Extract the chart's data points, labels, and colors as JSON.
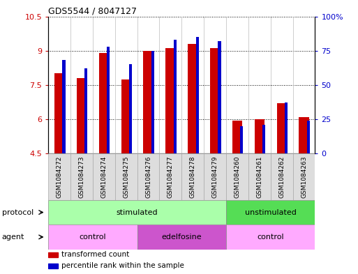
{
  "title": "GDS5544 / 8047127",
  "samples": [
    "GSM1084272",
    "GSM1084273",
    "GSM1084274",
    "GSM1084275",
    "GSM1084276",
    "GSM1084277",
    "GSM1084278",
    "GSM1084279",
    "GSM1084260",
    "GSM1084261",
    "GSM1084262",
    "GSM1084263"
  ],
  "red_values": [
    8.0,
    7.8,
    8.9,
    7.75,
    9.0,
    9.1,
    9.3,
    9.1,
    5.95,
    6.0,
    6.7,
    6.1
  ],
  "blue_values": [
    68,
    62,
    78,
    65,
    75,
    83,
    85,
    82,
    20,
    21,
    37,
    24
  ],
  "ylim_left": [
    4.5,
    10.5
  ],
  "ylim_right": [
    0,
    100
  ],
  "yticks_left": [
    4.5,
    6.0,
    7.5,
    9.0,
    10.5
  ],
  "yticks_right": [
    0,
    25,
    50,
    75,
    100
  ],
  "ytick_labels_left": [
    "4.5",
    "6",
    "7.5",
    "9",
    "10.5"
  ],
  "ytick_labels_right": [
    "0",
    "25",
    "50",
    "75",
    "100%"
  ],
  "grid_color": "black",
  "red_color": "#cc0000",
  "blue_color": "#0000cc",
  "bar_base": 4.5,
  "protocol_groups": [
    {
      "label": "stimulated",
      "start": 0,
      "end": 8,
      "color": "#aaffaa"
    },
    {
      "label": "unstimulated",
      "start": 8,
      "end": 12,
      "color": "#55dd55"
    }
  ],
  "agent_groups": [
    {
      "label": "control",
      "start": 0,
      "end": 4,
      "color": "#ffaaff"
    },
    {
      "label": "edelfosine",
      "start": 4,
      "end": 8,
      "color": "#cc55cc"
    },
    {
      "label": "control",
      "start": 8,
      "end": 12,
      "color": "#ffaaff"
    }
  ],
  "legend_items": [
    {
      "label": "transformed count",
      "color": "#cc0000"
    },
    {
      "label": "percentile rank within the sample",
      "color": "#0000cc"
    }
  ]
}
